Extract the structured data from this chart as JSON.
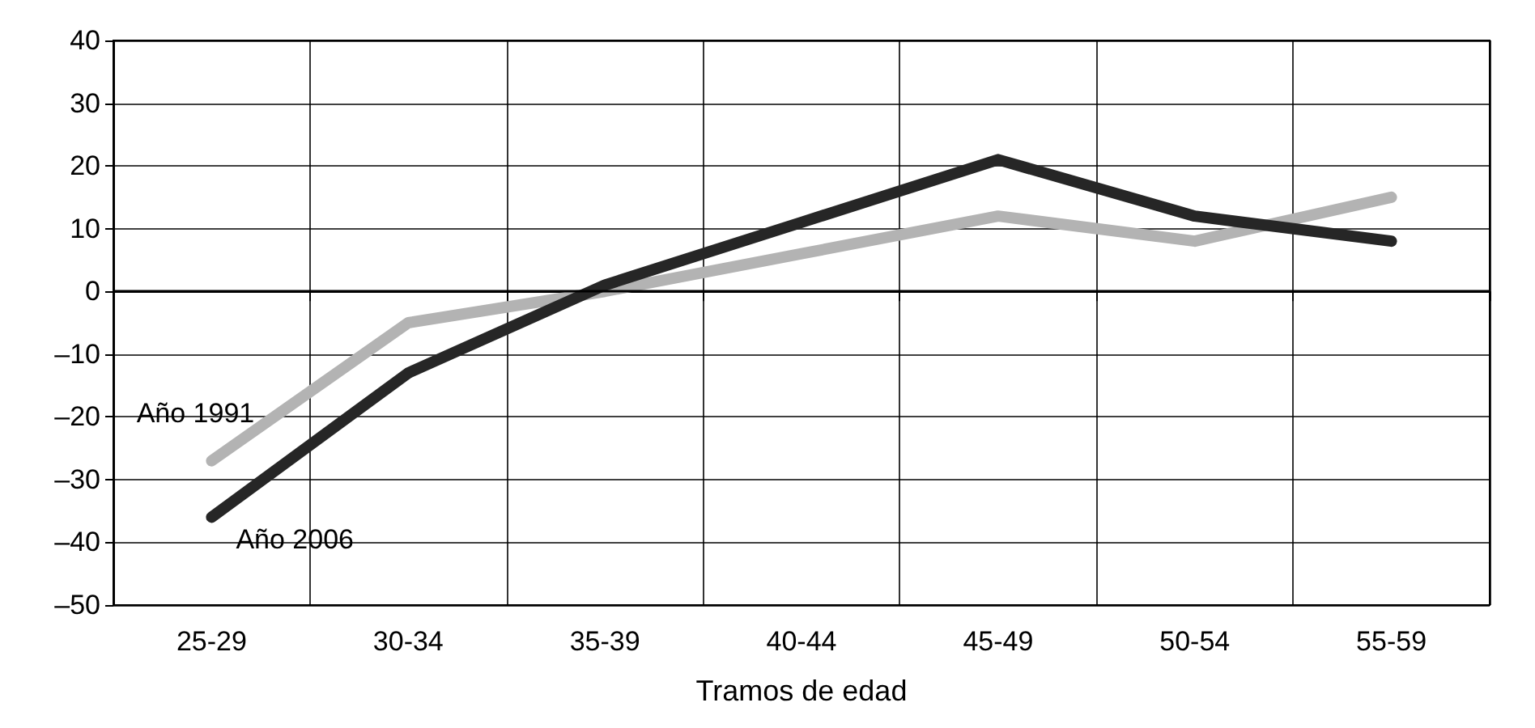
{
  "chart_data": {
    "type": "line",
    "xlabel": "Tramos de edad",
    "categories": [
      "25-29",
      "30-34",
      "35-39",
      "40-44",
      "45-49",
      "50-54",
      "55-59"
    ],
    "series": [
      {
        "name": "Año 1991",
        "color": "#b3b3b3",
        "values": [
          -27,
          -5,
          0,
          6,
          12,
          8,
          15
        ]
      },
      {
        "name": "Año 2006",
        "color": "#262626",
        "values": [
          -36,
          -13,
          1,
          11,
          21,
          12,
          8
        ]
      }
    ],
    "ylim": [
      -50,
      40
    ],
    "yticks": [
      {
        "value": -50,
        "label": "–50"
      },
      {
        "value": -40,
        "label": "–40"
      },
      {
        "value": -30,
        "label": "–30"
      },
      {
        "value": -20,
        "label": "–20"
      },
      {
        "value": -10,
        "label": "–10"
      },
      0,
      10,
      20,
      30,
      40
    ],
    "grid": true,
    "legend": false,
    "marker": "none",
    "line_style": "solid",
    "ref_lines": [
      {
        "axis": "y",
        "value": 0,
        "color": "#000000",
        "line_style": "solid"
      }
    ]
  }
}
